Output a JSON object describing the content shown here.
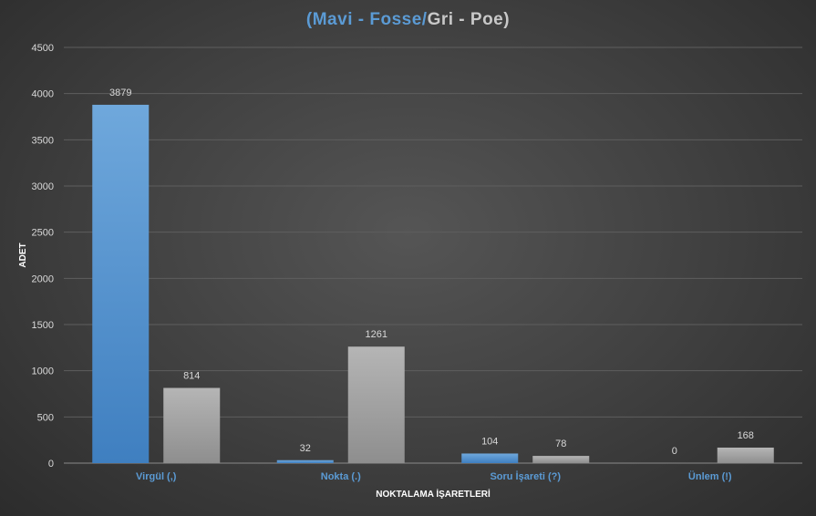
{
  "title": {
    "open": "(",
    "blue_name": "Mavi  - Fosse",
    "sep": "/",
    "gray_name": "Gri  - Poe",
    "close": ")"
  },
  "colors": {
    "blue": "#5b9bd5",
    "gray": "#a5a5a5",
    "title_gray": "#c8c8c8"
  },
  "chart_data": {
    "type": "bar",
    "categories": [
      "Virgül (,)",
      "Nokta (.)",
      "Soru İşareti (?)",
      "Ünlem (!)"
    ],
    "series": [
      {
        "values": [
          3879,
          32,
          104,
          0
        ],
        "color": "#5b9bd5"
      },
      {
        "values": [
          814,
          1261,
          78,
          168
        ],
        "color": "#a5a5a5"
      }
    ],
    "xlabel": "NOKTALAMA İŞARETLERİ",
    "ylabel": "ADET",
    "ylim": [
      0,
      4500
    ],
    "yticks": [
      0,
      500,
      1000,
      1500,
      2000,
      2500,
      3000,
      3500,
      4000,
      4500
    ],
    "grid": true,
    "legend": "none"
  }
}
